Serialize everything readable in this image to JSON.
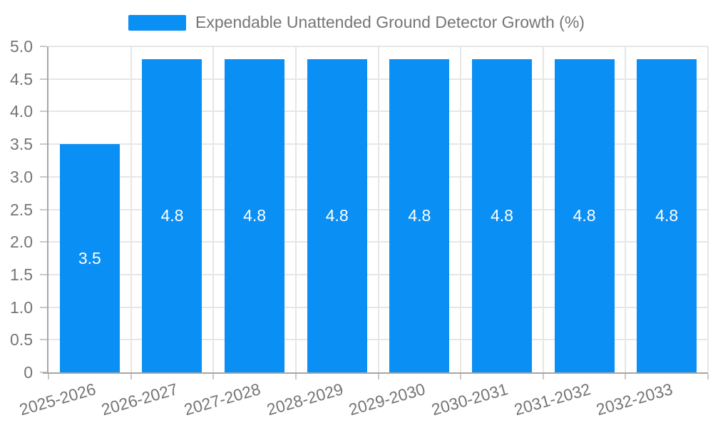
{
  "chart_data": {
    "type": "bar",
    "title": "Expendable Unattended Ground Detector Growth (%)",
    "legend": [
      "Expendable Unattended Ground Detector Growth (%)"
    ],
    "legend_position": "top-center",
    "categories": [
      "2025-2026",
      "2026-2027",
      "2027-2028",
      "2028-2029",
      "2029-2030",
      "2030-2031",
      "2031-2032",
      "2032-2033"
    ],
    "series": [
      {
        "name": "Expendable Unattended Ground Detector Growth (%)",
        "values": [
          3.5,
          4.8,
          4.8,
          4.8,
          4.8,
          4.8,
          4.8,
          4.8
        ],
        "value_labels": [
          "3.5",
          "4.8",
          "4.8",
          "4.8",
          "4.8",
          "4.8",
          "4.8",
          "4.8"
        ]
      }
    ],
    "xlabel": "",
    "ylabel": "",
    "ylim": [
      0,
      5
    ],
    "y_ticks": {
      "values": [
        0,
        0.5,
        1.0,
        1.5,
        2.0,
        2.5,
        3.0,
        3.5,
        4.0,
        4.5,
        5.0
      ],
      "labels": [
        "0",
        "0.5",
        "1.0",
        "1.5",
        "2.0",
        "2.5",
        "3.0",
        "3.5",
        "4.0",
        "4.5",
        "5.0"
      ]
    },
    "grid": true,
    "x_label_rotation_deg": -16,
    "bar_label_position": "inside-center",
    "colors": {
      "bar": "#0a8ff5",
      "axis_line": "#a6a6a6",
      "grid_line": "#e6e6e6",
      "tick": "#c9c9c9",
      "label_text": "#757575",
      "value_label": "#ffffff",
      "background": "#ffffff"
    }
  }
}
